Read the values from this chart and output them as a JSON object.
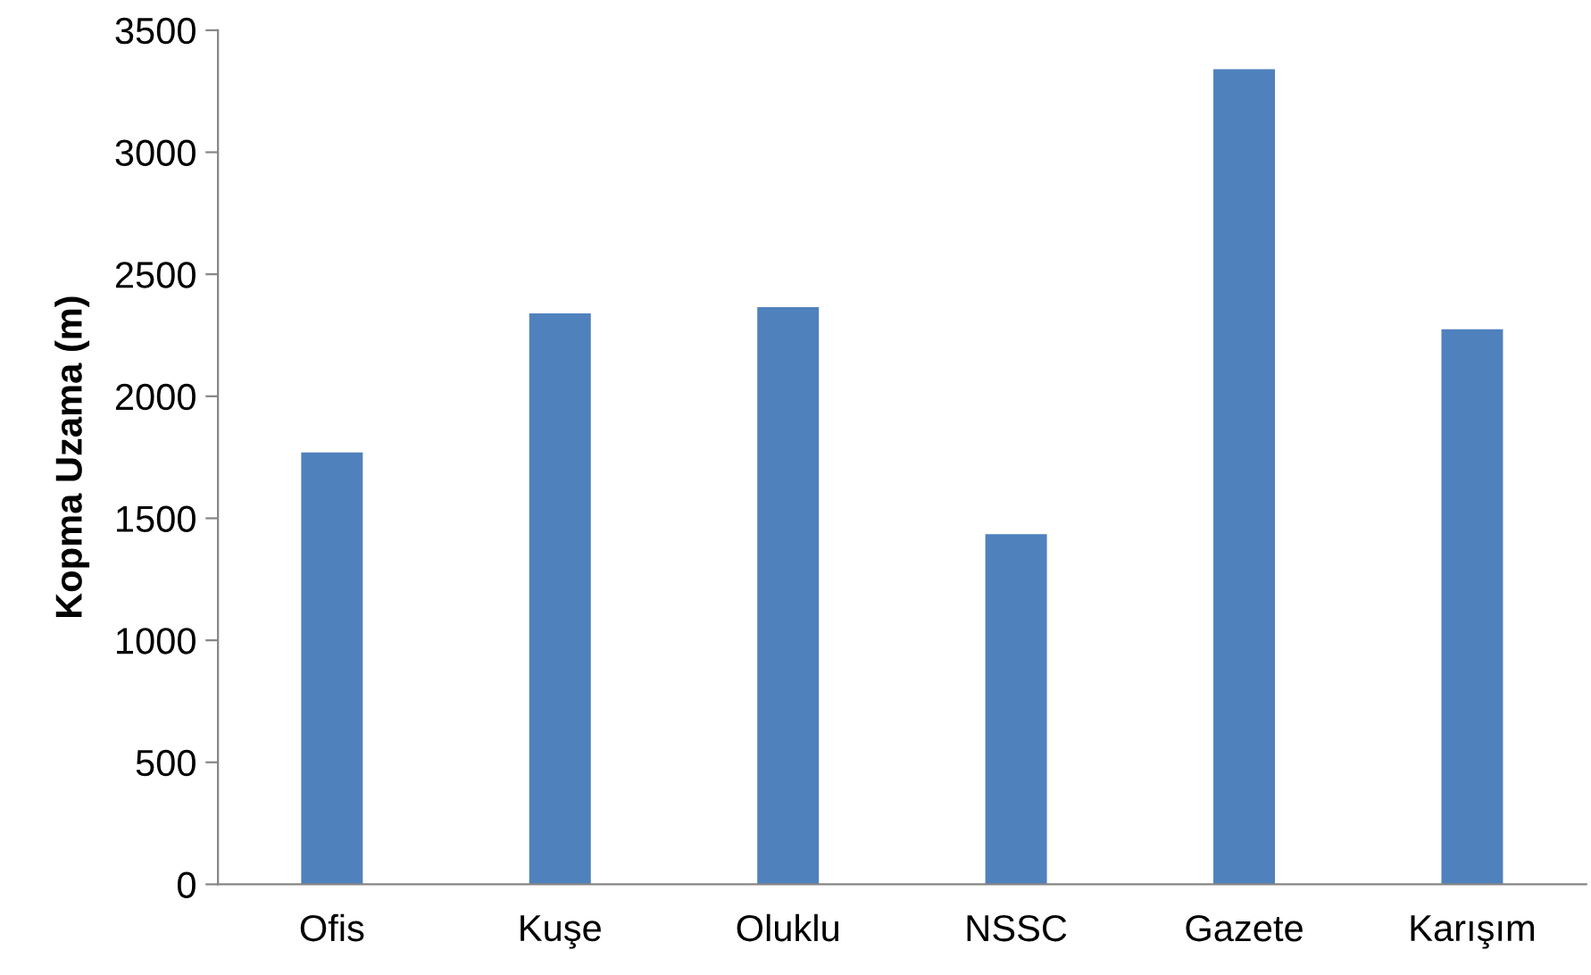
{
  "chart_data": {
    "type": "bar",
    "ylabel": "Kopma Uzama (m)",
    "categories": [
      "Ofis",
      "Kuşe",
      "Oluklu",
      "NSSC",
      "Gazete",
      "Karışım"
    ],
    "values": [
      1770,
      2340,
      2365,
      1435,
      3340,
      2275
    ],
    "color": "#4f81bd",
    "ylim": [
      0,
      3500
    ],
    "yticks": [
      0,
      500,
      1000,
      1500,
      2000,
      2500,
      3000,
      3500
    ],
    "grid": false
  }
}
